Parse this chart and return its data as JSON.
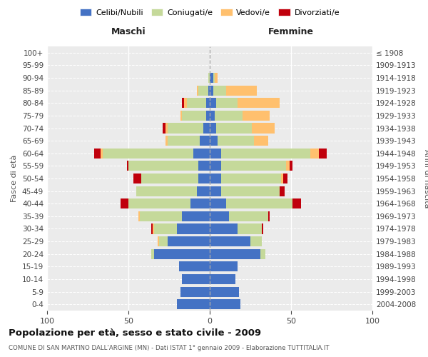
{
  "age_groups": [
    "0-4",
    "5-9",
    "10-14",
    "15-19",
    "20-24",
    "25-29",
    "30-34",
    "35-39",
    "40-44",
    "45-49",
    "50-54",
    "55-59",
    "60-64",
    "65-69",
    "70-74",
    "75-79",
    "80-84",
    "85-89",
    "90-94",
    "95-99",
    "100+"
  ],
  "birth_years": [
    "2004-2008",
    "1999-2003",
    "1994-1998",
    "1989-1993",
    "1984-1988",
    "1979-1983",
    "1974-1978",
    "1969-1973",
    "1964-1968",
    "1959-1963",
    "1954-1958",
    "1949-1953",
    "1944-1948",
    "1939-1943",
    "1934-1938",
    "1929-1933",
    "1924-1928",
    "1919-1923",
    "1914-1918",
    "1909-1913",
    "≤ 1908"
  ],
  "maschi": {
    "celibi": [
      20,
      18,
      17,
      19,
      34,
      26,
      20,
      17,
      12,
      8,
      7,
      7,
      10,
      6,
      4,
      2,
      2,
      1,
      0,
      0,
      0
    ],
    "coniugati": [
      0,
      0,
      0,
      0,
      2,
      5,
      14,
      26,
      38,
      37,
      35,
      43,
      56,
      20,
      22,
      15,
      12,
      6,
      1,
      0,
      0
    ],
    "vedovi": [
      0,
      0,
      0,
      0,
      0,
      1,
      1,
      1,
      0,
      0,
      0,
      0,
      1,
      1,
      1,
      1,
      2,
      1,
      0,
      0,
      0
    ],
    "divorziati": [
      0,
      0,
      0,
      0,
      0,
      0,
      1,
      0,
      5,
      0,
      5,
      1,
      4,
      0,
      2,
      0,
      1,
      0,
      0,
      0,
      0
    ]
  },
  "femmine": {
    "nubili": [
      19,
      18,
      16,
      17,
      31,
      25,
      17,
      12,
      10,
      7,
      7,
      7,
      7,
      5,
      4,
      3,
      4,
      2,
      2,
      0,
      0
    ],
    "coniugate": [
      0,
      0,
      0,
      0,
      3,
      7,
      15,
      24,
      41,
      36,
      37,
      40,
      55,
      22,
      22,
      17,
      13,
      8,
      1,
      0,
      0
    ],
    "vedove": [
      0,
      0,
      0,
      0,
      0,
      0,
      0,
      0,
      0,
      0,
      1,
      2,
      5,
      9,
      14,
      17,
      26,
      19,
      2,
      0,
      0
    ],
    "divorziate": [
      0,
      0,
      0,
      0,
      0,
      0,
      1,
      1,
      5,
      3,
      3,
      2,
      5,
      0,
      0,
      0,
      0,
      0,
      0,
      0,
      0
    ]
  },
  "color_celibi": "#4472c4",
  "color_coniugati": "#c5d99a",
  "color_vedovi": "#ffc06e",
  "color_divorziati": "#c0000c",
  "title": "Popolazione per età, sesso e stato civile - 2009",
  "subtitle": "COMUNE DI SAN MARTINO DALL'ARGINE (MN) - Dati ISTAT 1° gennaio 2009 - Elaborazione TUTTITALIA.IT",
  "xlabel_maschi": "Maschi",
  "xlabel_femmine": "Femmine",
  "ylabel_left": "Fasce di età",
  "ylabel_right": "Anni di nascita",
  "xlim": 100,
  "background_color": "#ebebeb"
}
